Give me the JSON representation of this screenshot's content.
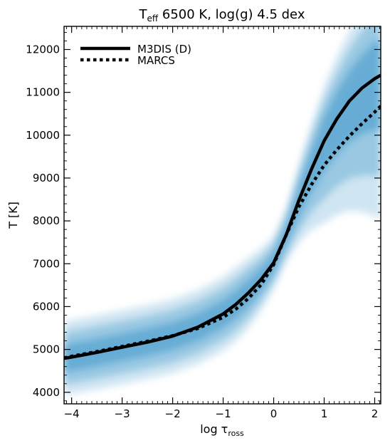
{
  "chart_data": {
    "type": "line",
    "title": {
      "prefix": "T",
      "subscript": "eff",
      "suffix": " 6500 K, log(g) 4.5 dex"
    },
    "xlabel": {
      "prefix": "log τ",
      "subscript": "ross"
    },
    "ylabel": "T [K]",
    "xlim": [
      -4.15,
      2.12
    ],
    "ylim": [
      3730,
      12540
    ],
    "xticks": [
      -4,
      -3,
      -2,
      -1,
      0,
      1,
      2
    ],
    "xtick_labels": [
      "−4",
      "−3",
      "−2",
      "−1",
      "0",
      "1",
      "2"
    ],
    "yticks": [
      4000,
      5000,
      6000,
      7000,
      8000,
      9000,
      10000,
      11000,
      12000
    ],
    "ytick_labels": [
      "4000",
      "5000",
      "6000",
      "7000",
      "8000",
      "9000",
      "10000",
      "11000",
      "12000"
    ],
    "grid": false,
    "legend_position": "top-left",
    "density_color": "#2b8cc4",
    "series": [
      {
        "name": "M3DIS (D)",
        "style": "solid",
        "color": "#000000",
        "x": [
          -4.15,
          -4.0,
          -3.5,
          -3.0,
          -2.5,
          -2.0,
          -1.5,
          -1.0,
          -0.75,
          -0.5,
          -0.25,
          0.0,
          0.25,
          0.5,
          0.75,
          1.0,
          1.25,
          1.5,
          1.75,
          2.0,
          2.12
        ],
        "y": [
          4790,
          4820,
          4930,
          5050,
          5170,
          5310,
          5520,
          5830,
          6050,
          6320,
          6630,
          7020,
          7680,
          8480,
          9210,
          9870,
          10380,
          10800,
          11100,
          11320,
          11400
        ]
      },
      {
        "name": "MARCS",
        "style": "dotted",
        "color": "#000000",
        "x": [
          -4.15,
          -4.0,
          -3.5,
          -3.0,
          -2.5,
          -2.0,
          -1.5,
          -1.0,
          -0.75,
          -0.5,
          -0.25,
          0.0,
          0.25,
          0.5,
          0.75,
          1.0,
          1.25,
          1.5,
          1.75,
          2.0,
          2.12
        ],
        "y": [
          4800,
          4840,
          4950,
          5070,
          5190,
          5320,
          5490,
          5750,
          5940,
          6190,
          6510,
          6980,
          7680,
          8330,
          8850,
          9300,
          9660,
          9980,
          10270,
          10540,
          10680
        ]
      }
    ]
  }
}
